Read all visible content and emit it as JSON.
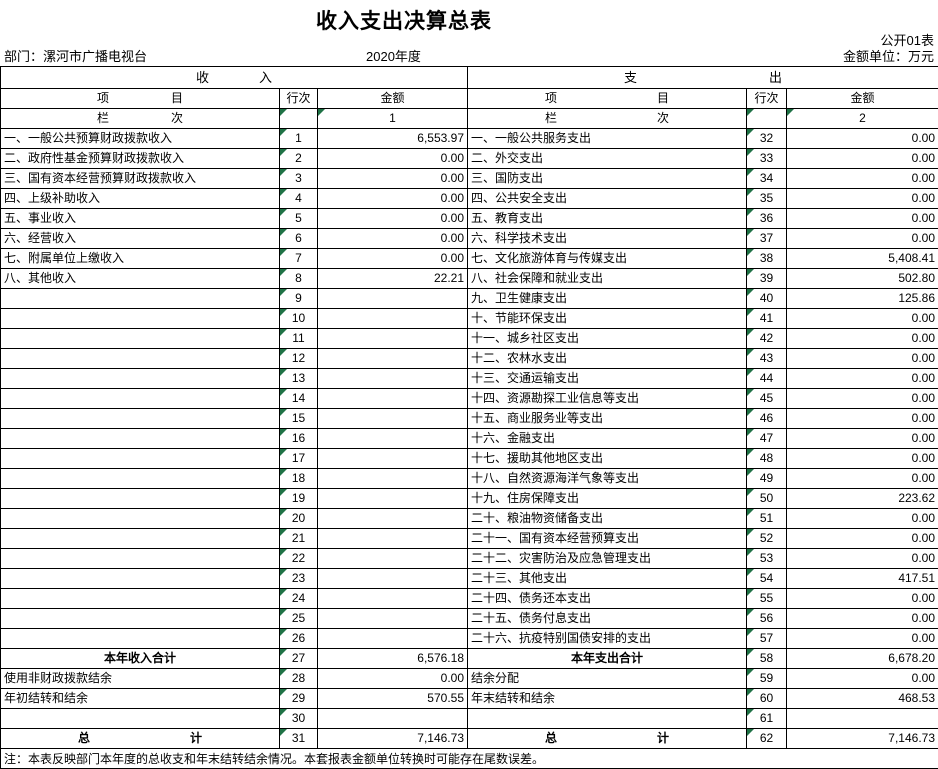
{
  "header": {
    "title": "收入支出决算总表",
    "table_code": "公开01表",
    "department": "部门：漯河市广播电视台",
    "year": "2020年度",
    "unit": "金额单位：万元"
  },
  "table": {
    "income_header": "收入",
    "expense_header": "支出",
    "col_item": "项目",
    "col_row_no": "行次",
    "col_amount": "金额",
    "col_index_label": "栏次",
    "income_col_index": "1",
    "expense_col_index": "2",
    "selected_row_no": "31",
    "income_rows": [
      {
        "item": "一、一般公共预算财政拨款收入",
        "row_no": "1",
        "amount": "6,553.97",
        "type": "item"
      },
      {
        "item": "二、政府性基金预算财政拨款收入",
        "row_no": "2",
        "amount": "0.00",
        "type": "item"
      },
      {
        "item": "三、国有资本经营预算财政拨款收入",
        "row_no": "3",
        "amount": "0.00",
        "type": "item"
      },
      {
        "item": "四、上级补助收入",
        "row_no": "4",
        "amount": "0.00",
        "type": "item"
      },
      {
        "item": "五、事业收入",
        "row_no": "5",
        "amount": "0.00",
        "type": "item"
      },
      {
        "item": "六、经营收入",
        "row_no": "6",
        "amount": "0.00",
        "type": "item"
      },
      {
        "item": "七、附属单位上缴收入",
        "row_no": "7",
        "amount": "0.00",
        "type": "item"
      },
      {
        "item": "八、其他收入",
        "row_no": "8",
        "amount": "22.21",
        "type": "item"
      },
      {
        "item": "",
        "row_no": "9",
        "amount": "",
        "type": "blank"
      },
      {
        "item": "",
        "row_no": "10",
        "amount": "",
        "type": "blank"
      },
      {
        "item": "",
        "row_no": "11",
        "amount": "",
        "type": "blank"
      },
      {
        "item": "",
        "row_no": "12",
        "amount": "",
        "type": "blank"
      },
      {
        "item": "",
        "row_no": "13",
        "amount": "",
        "type": "blank"
      },
      {
        "item": "",
        "row_no": "14",
        "amount": "",
        "type": "blank"
      },
      {
        "item": "",
        "row_no": "15",
        "amount": "",
        "type": "blank"
      },
      {
        "item": "",
        "row_no": "16",
        "amount": "",
        "type": "blank"
      },
      {
        "item": "",
        "row_no": "17",
        "amount": "",
        "type": "blank"
      },
      {
        "item": "",
        "row_no": "18",
        "amount": "",
        "type": "blank"
      },
      {
        "item": "",
        "row_no": "19",
        "amount": "",
        "type": "blank"
      },
      {
        "item": "",
        "row_no": "20",
        "amount": "",
        "type": "blank"
      },
      {
        "item": "",
        "row_no": "21",
        "amount": "",
        "type": "blank"
      },
      {
        "item": "",
        "row_no": "22",
        "amount": "",
        "type": "blank"
      },
      {
        "item": "",
        "row_no": "23",
        "amount": "",
        "type": "blank"
      },
      {
        "item": "",
        "row_no": "24",
        "amount": "",
        "type": "blank"
      },
      {
        "item": "",
        "row_no": "25",
        "amount": "",
        "type": "blank"
      },
      {
        "item": "",
        "row_no": "26",
        "amount": "",
        "type": "blank"
      },
      {
        "item": "本年收入合计",
        "row_no": "27",
        "amount": "6,576.18",
        "type": "total"
      },
      {
        "item": "使用非财政拨款结余",
        "row_no": "28",
        "amount": "0.00",
        "type": "item"
      },
      {
        "item": "年初结转和结余",
        "row_no": "29",
        "amount": "570.55",
        "type": "item"
      },
      {
        "item": "",
        "row_no": "30",
        "amount": "",
        "type": "blank"
      },
      {
        "item": "总计",
        "row_no": "31",
        "amount": "7,146.73",
        "type": "grand"
      }
    ],
    "expense_rows": [
      {
        "item": "一、一般公共服务支出",
        "row_no": "32",
        "amount": "0.00",
        "type": "item"
      },
      {
        "item": "二、外交支出",
        "row_no": "33",
        "amount": "0.00",
        "type": "item"
      },
      {
        "item": "三、国防支出",
        "row_no": "34",
        "amount": "0.00",
        "type": "item"
      },
      {
        "item": "四、公共安全支出",
        "row_no": "35",
        "amount": "0.00",
        "type": "item"
      },
      {
        "item": "五、教育支出",
        "row_no": "36",
        "amount": "0.00",
        "type": "item"
      },
      {
        "item": "六、科学技术支出",
        "row_no": "37",
        "amount": "0.00",
        "type": "item"
      },
      {
        "item": "七、文化旅游体育与传媒支出",
        "row_no": "38",
        "amount": "5,408.41",
        "type": "item"
      },
      {
        "item": "八、社会保障和就业支出",
        "row_no": "39",
        "amount": "502.80",
        "type": "item"
      },
      {
        "item": "九、卫生健康支出",
        "row_no": "40",
        "amount": "125.86",
        "type": "item"
      },
      {
        "item": "十、节能环保支出",
        "row_no": "41",
        "amount": "0.00",
        "type": "item"
      },
      {
        "item": "十一、城乡社区支出",
        "row_no": "42",
        "amount": "0.00",
        "type": "item"
      },
      {
        "item": "十二、农林水支出",
        "row_no": "43",
        "amount": "0.00",
        "type": "item"
      },
      {
        "item": "十三、交通运输支出",
        "row_no": "44",
        "amount": "0.00",
        "type": "item"
      },
      {
        "item": "十四、资源勘探工业信息等支出",
        "row_no": "45",
        "amount": "0.00",
        "type": "item"
      },
      {
        "item": "十五、商业服务业等支出",
        "row_no": "46",
        "amount": "0.00",
        "type": "item"
      },
      {
        "item": "十六、金融支出",
        "row_no": "47",
        "amount": "0.00",
        "type": "item"
      },
      {
        "item": "十七、援助其他地区支出",
        "row_no": "48",
        "amount": "0.00",
        "type": "item"
      },
      {
        "item": "十八、自然资源海洋气象等支出",
        "row_no": "49",
        "amount": "0.00",
        "type": "item"
      },
      {
        "item": "十九、住房保障支出",
        "row_no": "50",
        "amount": "223.62",
        "type": "item"
      },
      {
        "item": "二十、粮油物资储备支出",
        "row_no": "51",
        "amount": "0.00",
        "type": "item"
      },
      {
        "item": "二十一、国有资本经营预算支出",
        "row_no": "52",
        "amount": "0.00",
        "type": "item"
      },
      {
        "item": "二十二、灾害防治及应急管理支出",
        "row_no": "53",
        "amount": "0.00",
        "type": "item"
      },
      {
        "item": "二十三、其他支出",
        "row_no": "54",
        "amount": "417.51",
        "type": "item"
      },
      {
        "item": "二十四、债务还本支出",
        "row_no": "55",
        "amount": "0.00",
        "type": "item"
      },
      {
        "item": "二十五、债务付息支出",
        "row_no": "56",
        "amount": "0.00",
        "type": "item"
      },
      {
        "item": "二十六、抗疫特别国债安排的支出",
        "row_no": "57",
        "amount": "0.00",
        "type": "item"
      },
      {
        "item": "本年支出合计",
        "row_no": "58",
        "amount": "6,678.20",
        "type": "total"
      },
      {
        "item": "结余分配",
        "row_no": "59",
        "amount": "0.00",
        "type": "item"
      },
      {
        "item": "年末结转和结余",
        "row_no": "60",
        "amount": "468.53",
        "type": "item"
      },
      {
        "item": "",
        "row_no": "61",
        "amount": "",
        "type": "blank"
      },
      {
        "item": "总计",
        "row_no": "62",
        "amount": "7,146.73",
        "type": "grand"
      }
    ]
  },
  "note": "注：本表反映部门本年度的总收支和年末结转结余情况。本套报表金额单位转换时可能存在尾数误差。",
  "colors": {
    "grid_line": "#000000",
    "error_indicator_green": "#1f7246",
    "selection_border": "#000000",
    "background": "#ffffff"
  }
}
